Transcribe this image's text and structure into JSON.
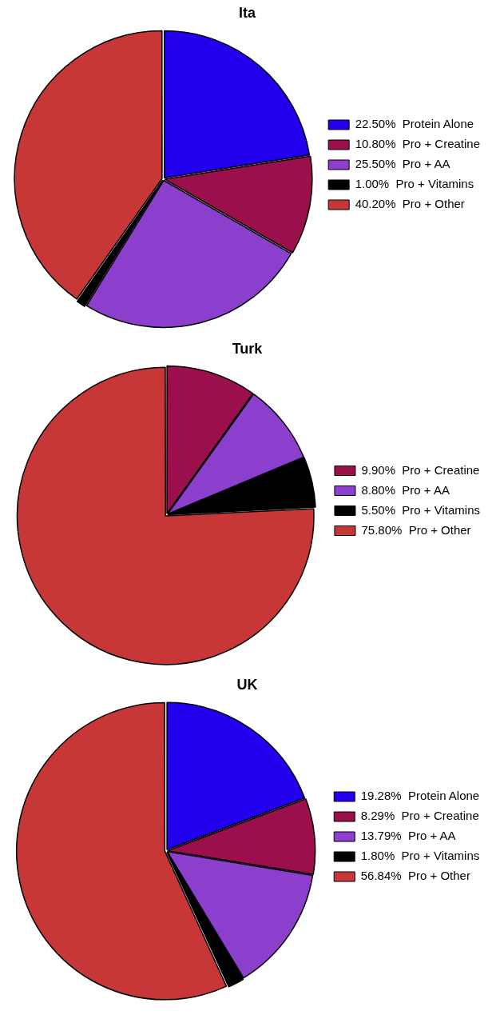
{
  "chart_data": [
    {
      "type": "pie",
      "title": "Ita",
      "categories": [
        "Protein Alone",
        "Pro + Creatine",
        "Pro + AA",
        "Pro + Vitamins",
        "Pro + Other"
      ],
      "values": [
        22.5,
        10.8,
        25.5,
        1.0,
        40.2
      ],
      "value_labels": [
        "22.50%",
        "10.80%",
        "25.50%",
        "1.00%",
        "40.20%"
      ],
      "colors": [
        "#2200ee",
        "#9b0f4d",
        "#8b3fcc",
        "#000000",
        "#c83737"
      ],
      "legend": "right"
    },
    {
      "type": "pie",
      "title": "Turk",
      "categories": [
        "Pro + Creatine",
        "Pro + AA",
        "Pro + Vitamins",
        "Pro + Other"
      ],
      "values": [
        9.9,
        8.8,
        5.5,
        75.8
      ],
      "value_labels": [
        "9.90%",
        "8.80%",
        "5.50%",
        "75.80%"
      ],
      "colors": [
        "#9b0f4d",
        "#8b3fcc",
        "#000000",
        "#c83737"
      ],
      "legend": "right"
    },
    {
      "type": "pie",
      "title": "UK",
      "categories": [
        "Protein Alone",
        "Pro + Creatine",
        "Pro + AA",
        "Pro + Vitamins",
        "Pro + Other"
      ],
      "values": [
        19.28,
        8.29,
        13.79,
        1.8,
        56.84
      ],
      "value_labels": [
        "19.28%",
        "8.29%",
        "13.79%",
        "1.80%",
        "56.84%"
      ],
      "colors": [
        "#2200ee",
        "#9b0f4d",
        "#8b3fcc",
        "#000000",
        "#c83737"
      ],
      "legend": "right"
    }
  ]
}
